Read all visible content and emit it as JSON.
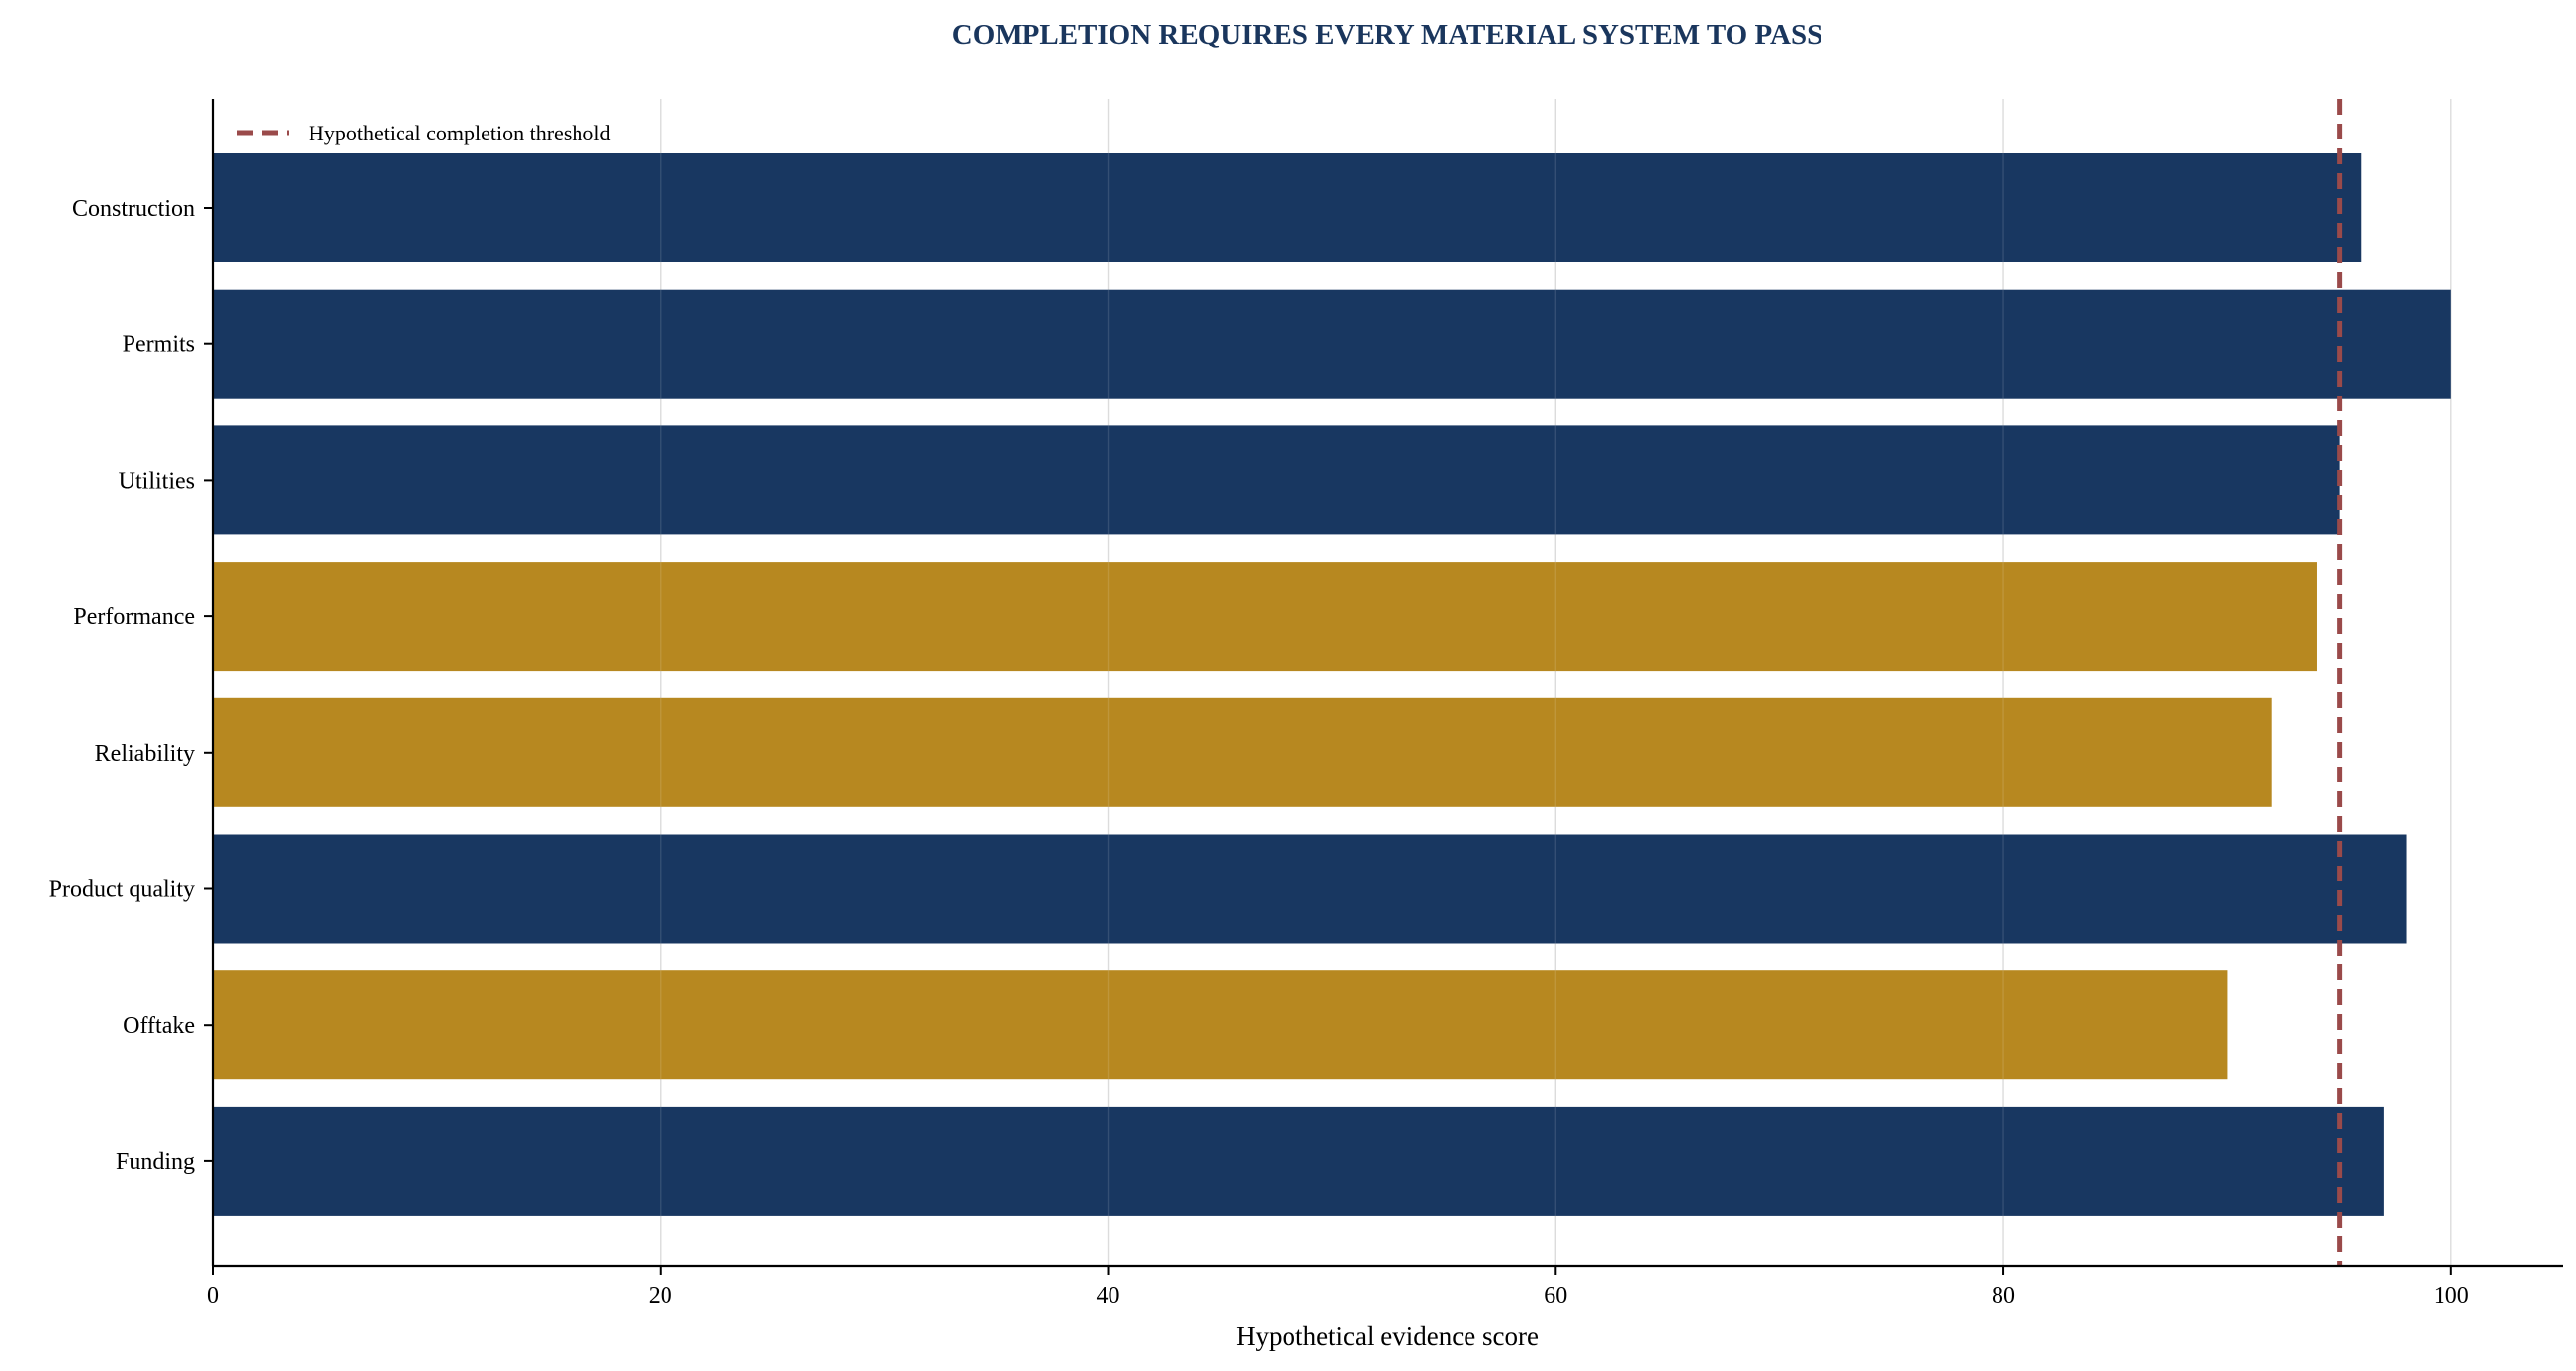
{
  "chart_data": {
    "type": "bar",
    "orientation": "horizontal",
    "title": "COMPLETION REQUIRES EVERY MATERIAL SYSTEM TO PASS",
    "xlabel": "Hypothetical evidence score",
    "ylabel": "",
    "xlim": [
      0,
      105
    ],
    "x_ticks": [
      0,
      20,
      40,
      60,
      80,
      100
    ],
    "grid": "vertical",
    "categories": [
      "Construction",
      "Permits",
      "Utilities",
      "Performance",
      "Reliability",
      "Product quality",
      "Offtake",
      "Funding"
    ],
    "values": [
      96,
      100,
      95,
      94,
      92,
      98,
      90,
      97
    ],
    "bar_colors": [
      "#183761",
      "#183761",
      "#183761",
      "#b78820",
      "#b78820",
      "#183761",
      "#b78820",
      "#183761"
    ],
    "threshold": {
      "value": 95,
      "label": "Hypothetical completion threshold",
      "color": "#9a4a4a",
      "style": "dashed"
    },
    "legend_position": "top-left"
  }
}
